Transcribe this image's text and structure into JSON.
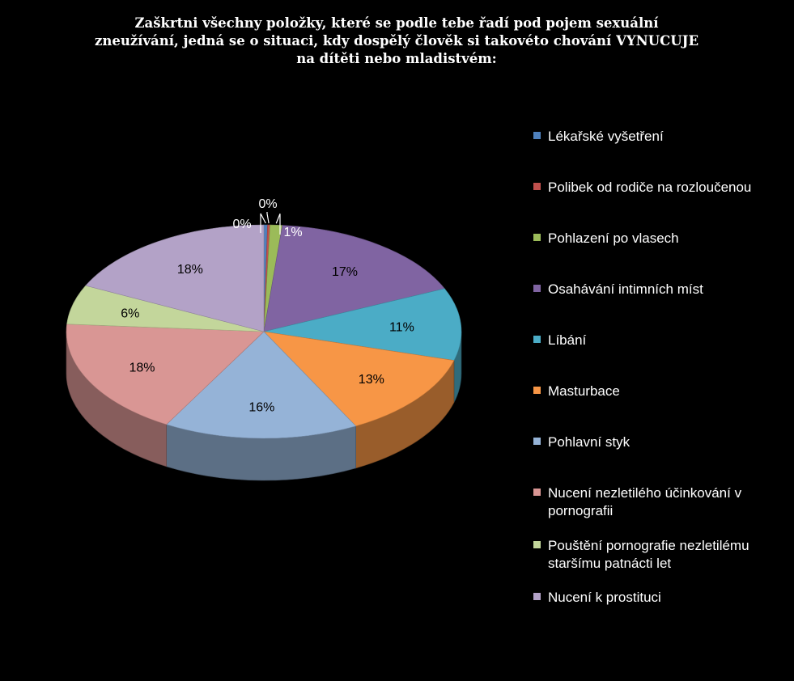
{
  "chart_data": {
    "type": "pie",
    "title": "Zaškrtni všechny položky, které se podle tebe řadí pod pojem sexuální\nzneužívání, jedná se o situaci, kdy dospělý člověk si takovéto chování VYNUCUJE\nna dítěti nebo mladistvém:",
    "legend_position": "right",
    "three_d": true,
    "slices": [
      {
        "label": "Lékařské vyšetření",
        "value": 0.3,
        "value_label": "0%",
        "color": "#4F81BD"
      },
      {
        "label": "Polibek od rodiče na rozloučenou",
        "value": 0.2,
        "value_label": "0%",
        "color": "#C0504D"
      },
      {
        "label": "Pohlazení po vlasech",
        "value": 1,
        "value_label": "1%",
        "color": "#9BBB59"
      },
      {
        "label": "Osahávání intimních míst",
        "value": 17,
        "value_label": "17%",
        "color": "#8064A2"
      },
      {
        "label": "Líbání",
        "value": 11,
        "value_label": "11%",
        "color": "#4BACC6"
      },
      {
        "label": "Masturbace",
        "value": 13,
        "value_label": "13%",
        "color": "#F79646"
      },
      {
        "label": "Pohlavní styk",
        "value": 16,
        "value_label": "16%",
        "color": "#95B3D7"
      },
      {
        "label": "Nucení nezletilého  účinkování v pornografii",
        "value": 18,
        "value_label": "18%",
        "color": "#D99694"
      },
      {
        "label": "Pouštění pornografie nezletilému staršímu patnácti let",
        "value": 6,
        "value_label": "6%",
        "color": "#C3D69B"
      },
      {
        "label": "Nucení k prostituci",
        "value": 18,
        "value_label": "18%",
        "color": "#B3A2C7"
      }
    ]
  }
}
